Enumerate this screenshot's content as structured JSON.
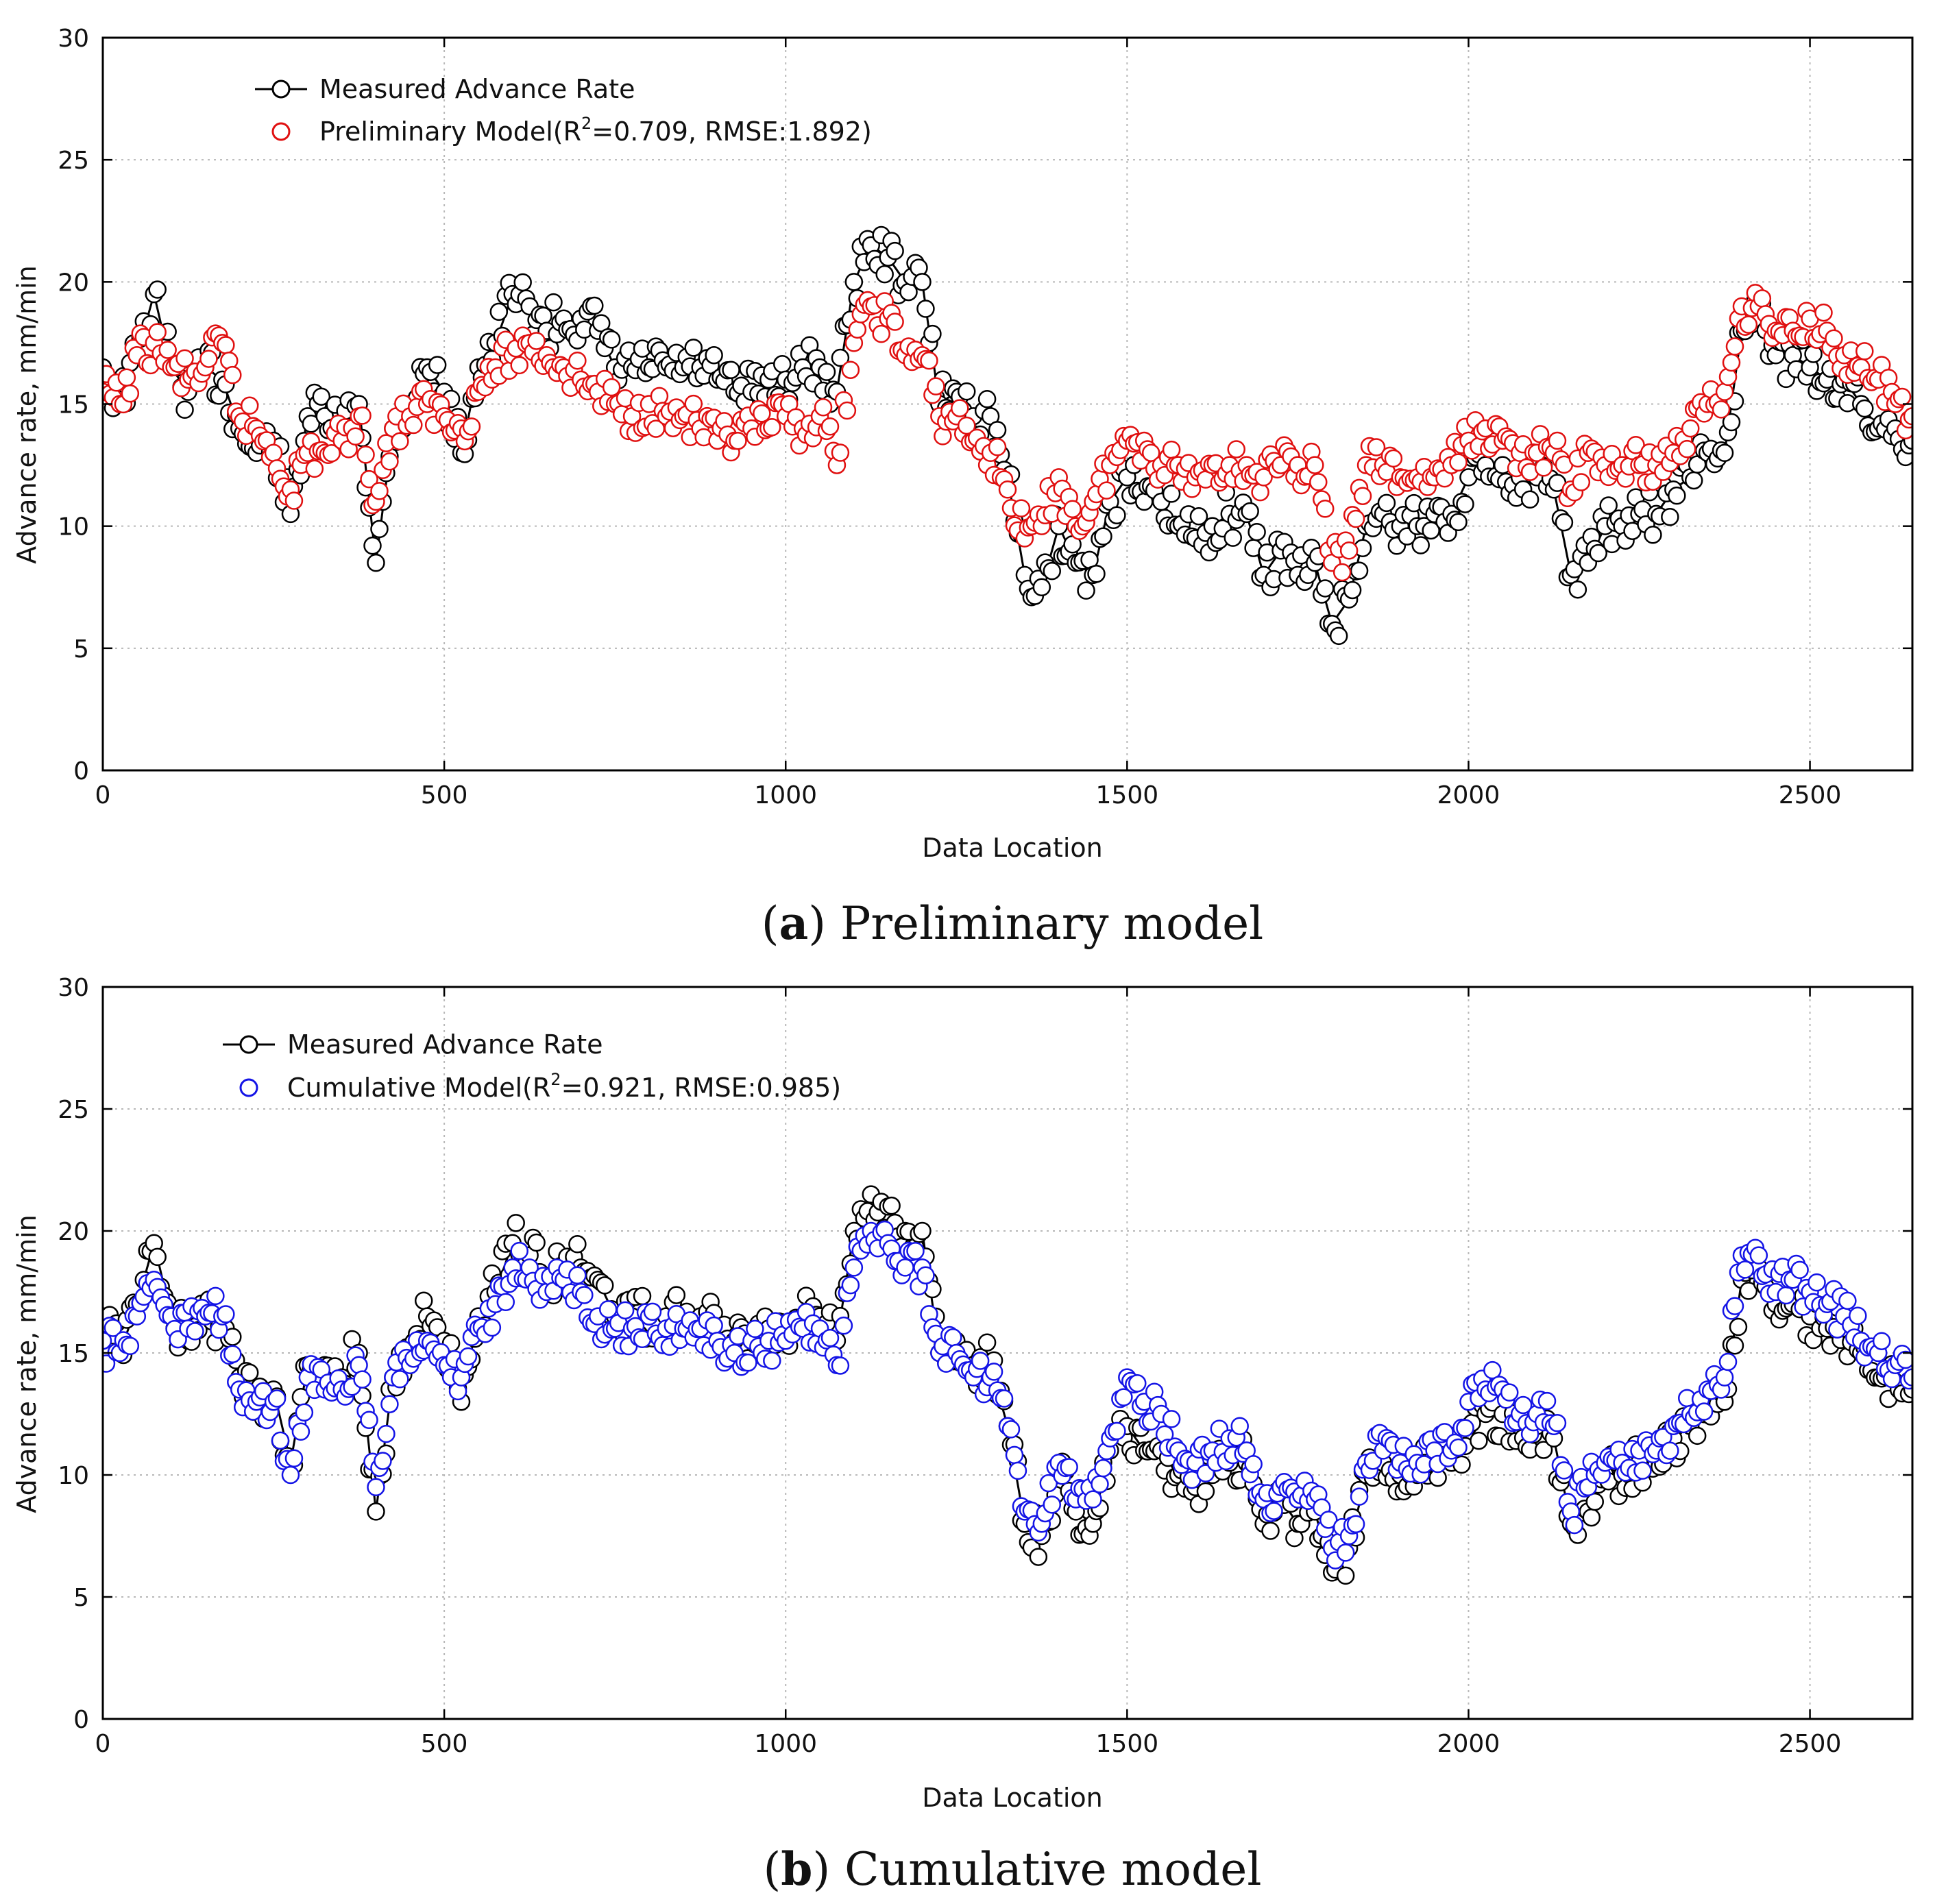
{
  "colors": {
    "measured": "#000000",
    "preliminary": "#e01010",
    "cumulative": "#1414e6"
  },
  "chart_data": [
    {
      "type": "line",
      "panel": "a",
      "caption_letter": "a",
      "caption_text": ") Preliminary model",
      "caption_open": "(",
      "xlabel": "Data Location",
      "ylabel": "Advance rate, mm/min",
      "xlim": [
        0,
        2650
      ],
      "ylim": [
        0,
        30
      ],
      "xticks": [
        "0",
        "500",
        "1000",
        "1500",
        "2000",
        "2500"
      ],
      "yticks": [
        "0",
        "5",
        "10",
        "15",
        "20",
        "25",
        "30"
      ],
      "grid": true,
      "legend_position": "top-left",
      "legend": [
        {
          "label": "Measured Advance Rate",
          "marker": "circle-line",
          "color": "#000000"
        },
        {
          "label": "Preliminary Model(R",
          "sup": "2",
          "label_rest": "=0.709, RMSE:1.892)",
          "marker": "circle",
          "color": "#e01010"
        }
      ],
      "x": [
        0,
        25,
        50,
        75,
        100,
        125,
        150,
        175,
        200,
        225,
        250,
        275,
        300,
        325,
        350,
        375,
        400,
        425,
        450,
        475,
        500,
        525,
        550,
        575,
        600,
        625,
        650,
        675,
        700,
        725,
        750,
        775,
        800,
        825,
        850,
        875,
        900,
        925,
        950,
        975,
        1000,
        1025,
        1050,
        1075,
        1100,
        1125,
        1150,
        1175,
        1200,
        1225,
        1250,
        1275,
        1300,
        1325,
        1350,
        1375,
        1400,
        1425,
        1450,
        1475,
        1500,
        1525,
        1550,
        1575,
        1600,
        1625,
        1650,
        1675,
        1700,
        1725,
        1750,
        1775,
        1800,
        1825,
        1850,
        1875,
        1900,
        1925,
        1950,
        1975,
        2000,
        2025,
        2050,
        2075,
        2100,
        2125,
        2150,
        2175,
        2200,
        2225,
        2250,
        2275,
        2300,
        2325,
        2350,
        2375,
        2400,
        2425,
        2450,
        2475,
        2500,
        2525,
        2550,
        2575,
        2600,
        2625,
        2650
      ],
      "series": [
        {
          "name": "Measured Advance Rate",
          "values": [
            16.5,
            15.0,
            17.0,
            19.5,
            16.5,
            15.5,
            16.5,
            16.0,
            14.0,
            13.0,
            13.5,
            10.5,
            14.5,
            14.5,
            14.0,
            15.0,
            8.5,
            14.0,
            15.0,
            16.5,
            15.5,
            13.0,
            16.5,
            17.5,
            19.5,
            19.0,
            18.0,
            18.5,
            18.5,
            18.0,
            16.5,
            16.5,
            16.5,
            16.5,
            16.5,
            16.5,
            16.0,
            15.5,
            15.5,
            16.0,
            16.0,
            16.5,
            16.5,
            15.5,
            20.0,
            21.5,
            21.0,
            20.0,
            20.0,
            15.0,
            15.5,
            14.5,
            14.5,
            12.0,
            8.0,
            7.5,
            10.0,
            8.5,
            8.0,
            11.0,
            12.0,
            11.0,
            11.0,
            10.0,
            9.5,
            10.0,
            10.5,
            10.5,
            8.0,
            9.0,
            8.0,
            8.5,
            6.0,
            7.0,
            10.0,
            10.5,
            10.0,
            10.0,
            10.5,
            10.5,
            12.0,
            12.5,
            12.5,
            12.0,
            12.0,
            11.5,
            8.0,
            8.5,
            10.0,
            10.0,
            10.5,
            10.5,
            11.5,
            12.0,
            13.0,
            13.0,
            18.0,
            18.5,
            17.0,
            17.0,
            16.5,
            16.0,
            16.0,
            15.0,
            14.0,
            14.0,
            13.5
          ]
        },
        {
          "name": "Preliminary Model",
          "values": [
            15.5,
            15.0,
            17.0,
            17.5,
            16.5,
            16.0,
            16.5,
            17.5,
            14.5,
            14.0,
            13.0,
            11.5,
            13.0,
            13.0,
            13.5,
            14.5,
            11.0,
            14.0,
            14.5,
            15.0,
            14.5,
            14.0,
            15.5,
            16.5,
            17.0,
            17.5,
            17.0,
            16.5,
            16.0,
            15.5,
            15.0,
            14.5,
            15.0,
            14.5,
            14.5,
            14.0,
            13.5,
            13.5,
            14.0,
            14.0,
            14.5,
            14.0,
            14.5,
            12.5,
            17.5,
            19.0,
            18.5,
            17.0,
            17.0,
            14.5,
            14.5,
            13.5,
            13.0,
            11.5,
            9.5,
            10.0,
            12.0,
            10.0,
            11.0,
            12.5,
            13.5,
            13.5,
            12.5,
            12.5,
            12.0,
            12.5,
            12.5,
            12.5,
            12.0,
            12.5,
            12.5,
            12.5,
            8.5,
            9.0,
            12.5,
            12.5,
            12.0,
            12.0,
            12.0,
            12.5,
            13.5,
            14.0,
            13.5,
            13.0,
            13.0,
            13.0,
            11.5,
            13.0,
            12.5,
            12.5,
            12.5,
            12.5,
            13.0,
            14.0,
            15.0,
            15.5,
            19.0,
            19.0,
            18.0,
            18.0,
            18.5,
            18.0,
            17.0,
            16.5,
            16.0,
            15.0,
            14.5
          ]
        }
      ]
    },
    {
      "type": "line",
      "panel": "b",
      "caption_letter": "b",
      "caption_text": ") Cumulative model",
      "caption_open": "(",
      "xlabel": "Data Location",
      "ylabel": "Advance rate, mm/min",
      "xlim": [
        0,
        2650
      ],
      "ylim": [
        0,
        30
      ],
      "xticks": [
        "0",
        "500",
        "1000",
        "1500",
        "2000",
        "2500"
      ],
      "yticks": [
        "0",
        "5",
        "10",
        "15",
        "20",
        "25",
        "30"
      ],
      "grid": true,
      "legend_position": "top-left",
      "legend": [
        {
          "label": "Measured Advance Rate",
          "marker": "circle-line",
          "color": "#000000"
        },
        {
          "label": "Cumulative Model(R",
          "sup": "2",
          "label_rest": "=0.921, RMSE:0.985)",
          "marker": "circle",
          "color": "#1414e6"
        }
      ],
      "x": [
        0,
        25,
        50,
        75,
        100,
        125,
        150,
        175,
        200,
        225,
        250,
        275,
        300,
        325,
        350,
        375,
        400,
        425,
        450,
        475,
        500,
        525,
        550,
        575,
        600,
        625,
        650,
        675,
        700,
        725,
        750,
        775,
        800,
        825,
        850,
        875,
        900,
        925,
        950,
        975,
        1000,
        1025,
        1050,
        1075,
        1100,
        1125,
        1150,
        1175,
        1200,
        1225,
        1250,
        1275,
        1300,
        1325,
        1350,
        1375,
        1400,
        1425,
        1450,
        1475,
        1500,
        1525,
        1550,
        1575,
        1600,
        1625,
        1650,
        1675,
        1700,
        1725,
        1750,
        1775,
        1800,
        1825,
        1850,
        1875,
        1900,
        1925,
        1950,
        1975,
        2000,
        2025,
        2050,
        2075,
        2100,
        2125,
        2150,
        2175,
        2200,
        2225,
        2250,
        2275,
        2300,
        2325,
        2350,
        2375,
        2400,
        2425,
        2450,
        2475,
        2500,
        2525,
        2550,
        2575,
        2600,
        2625,
        2650
      ],
      "series": [
        {
          "name": "Measured Advance Rate",
          "values": [
            16.5,
            15.0,
            17.0,
            19.5,
            16.5,
            15.5,
            16.5,
            16.0,
            14.0,
            13.0,
            13.5,
            10.5,
            14.5,
            14.5,
            14.0,
            15.0,
            8.5,
            14.0,
            15.0,
            16.5,
            15.5,
            13.0,
            16.5,
            17.5,
            19.5,
            19.0,
            18.0,
            18.5,
            18.5,
            18.0,
            16.5,
            16.5,
            16.5,
            16.5,
            16.5,
            16.5,
            16.0,
            15.5,
            15.5,
            16.0,
            16.0,
            16.5,
            16.5,
            15.5,
            20.0,
            21.5,
            21.0,
            20.0,
            20.0,
            15.0,
            15.5,
            14.5,
            14.5,
            12.0,
            8.0,
            7.5,
            10.0,
            8.5,
            8.0,
            11.0,
            12.0,
            11.0,
            11.0,
            10.0,
            9.5,
            10.0,
            10.5,
            10.5,
            8.0,
            9.0,
            8.0,
            8.5,
            6.0,
            7.0,
            10.0,
            10.5,
            10.0,
            10.0,
            10.5,
            10.5,
            12.0,
            12.5,
            12.5,
            12.0,
            12.0,
            11.5,
            8.0,
            8.5,
            10.0,
            10.0,
            10.5,
            10.5,
            11.5,
            12.0,
            13.0,
            13.0,
            18.0,
            18.5,
            17.0,
            17.0,
            16.5,
            16.0,
            16.0,
            15.0,
            14.0,
            14.0,
            13.5
          ]
        },
        {
          "name": "Cumulative Model",
          "values": [
            15.5,
            15.0,
            16.5,
            18.0,
            16.5,
            16.0,
            16.5,
            16.5,
            13.5,
            13.0,
            13.0,
            10.0,
            14.0,
            13.5,
            13.5,
            14.5,
            9.5,
            14.0,
            14.5,
            15.5,
            14.5,
            14.0,
            16.0,
            17.0,
            18.5,
            18.5,
            17.5,
            18.0,
            17.5,
            16.5,
            16.0,
            16.0,
            16.5,
            16.0,
            16.0,
            16.0,
            15.5,
            15.0,
            15.5,
            15.5,
            15.5,
            16.0,
            16.0,
            14.5,
            18.5,
            20.0,
            19.5,
            18.5,
            18.5,
            15.0,
            15.0,
            14.0,
            14.0,
            12.0,
            8.5,
            8.0,
            10.5,
            9.0,
            9.0,
            11.5,
            14.0,
            13.0,
            12.5,
            11.0,
            10.5,
            11.0,
            11.5,
            11.0,
            9.0,
            9.5,
            9.0,
            9.0,
            7.0,
            7.5,
            10.5,
            11.0,
            10.5,
            10.5,
            11.0,
            11.0,
            13.0,
            13.5,
            13.5,
            12.5,
            12.5,
            12.0,
            8.5,
            9.5,
            10.5,
            10.5,
            11.0,
            11.0,
            12.0,
            12.5,
            13.5,
            14.0,
            19.0,
            19.0,
            17.5,
            18.0,
            17.5,
            17.0,
            16.5,
            15.5,
            15.0,
            14.5,
            14.0
          ]
        }
      ]
    }
  ]
}
